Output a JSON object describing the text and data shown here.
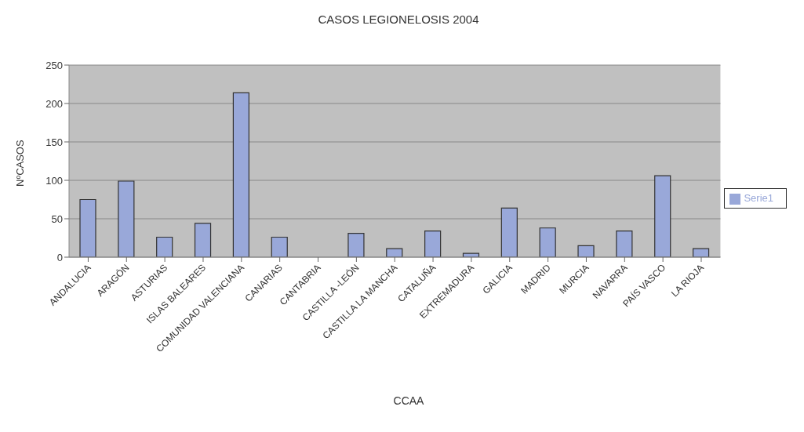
{
  "chart_data": {
    "type": "bar",
    "title": "CASOS LEGIONELOSIS 2004",
    "xlabel": "CCAA",
    "ylabel": "NºCASOS",
    "categories": [
      "ANDALUCIA",
      "ARAGÓN",
      "ASTURIAS",
      "ISLAS BALEARES",
      "COMUNIDAD VALENCIANA",
      "CANARIAS",
      "CANTABRIA",
      "CASTILLA -LEÓN",
      "CASTILLA LA MANCHA",
      "CATALUÑA",
      "EXTREMADURA",
      "GALICIA",
      "MADRID",
      "MURCIA",
      "NAVARRA",
      "PAÍS VASCO",
      "LA RIOJA"
    ],
    "series": [
      {
        "name": "Serie1",
        "color": "#99a8d9",
        "values": [
          75,
          99,
          26,
          44,
          214,
          26,
          0,
          31,
          11,
          34,
          5,
          64,
          38,
          15,
          34,
          106,
          11
        ]
      }
    ],
    "ylim": [
      0,
      250
    ],
    "yticks": [
      0,
      50,
      100,
      150,
      200,
      250
    ],
    "grid": "y",
    "legend": "right"
  }
}
